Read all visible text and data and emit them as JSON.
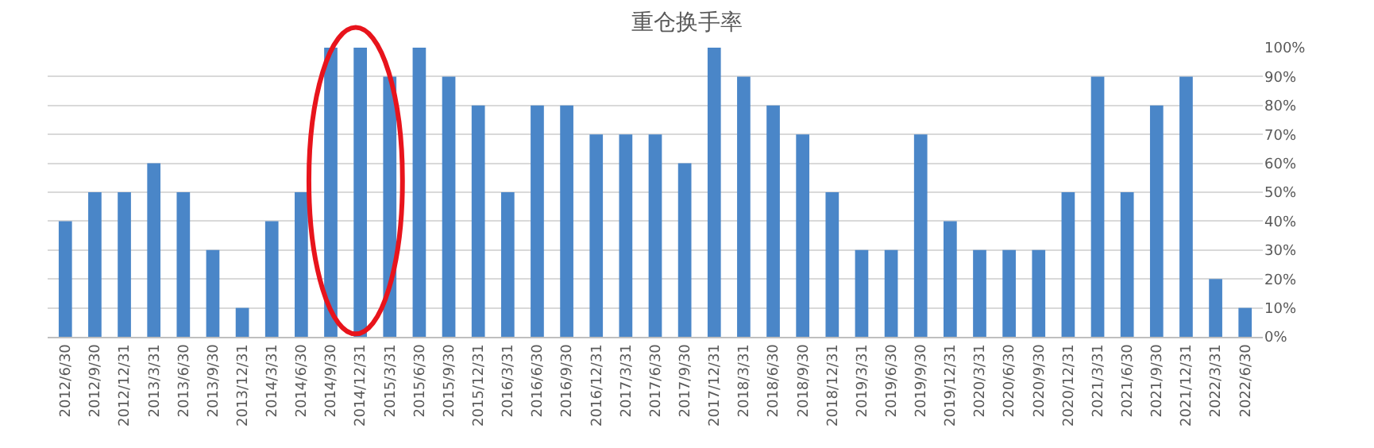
{
  "chart_data": {
    "type": "bar",
    "title": "重仓换手率",
    "categories": [
      "2012/6/30",
      "2012/9/30",
      "2012/12/31",
      "2013/3/31",
      "2013/6/30",
      "2013/9/30",
      "2013/12/31",
      "2014/3/31",
      "2014/6/30",
      "2014/9/30",
      "2014/12/31",
      "2015/3/31",
      "2015/6/30",
      "2015/9/30",
      "2015/12/31",
      "2016/3/31",
      "2016/6/30",
      "2016/9/30",
      "2016/12/31",
      "2017/3/31",
      "2017/6/30",
      "2017/9/30",
      "2017/12/31",
      "2018/3/31",
      "2018/6/30",
      "2018/9/30",
      "2018/12/31",
      "2019/3/31",
      "2019/6/30",
      "2019/9/30",
      "2019/12/31",
      "2020/3/31",
      "2020/6/30",
      "2020/9/30",
      "2020/12/31",
      "2021/3/31",
      "2021/6/30",
      "2021/9/30",
      "2021/12/31",
      "2022/3/31",
      "2022/6/30"
    ],
    "values": [
      40,
      50,
      50,
      60,
      50,
      30,
      10,
      40,
      50,
      100,
      100,
      90,
      100,
      90,
      80,
      50,
      80,
      80,
      70,
      70,
      70,
      60,
      100,
      90,
      80,
      70,
      50,
      30,
      30,
      70,
      40,
      30,
      30,
      30,
      50,
      90,
      50,
      80,
      90,
      20,
      10
    ],
    "color": "#4a86c8",
    "ylim": [
      0,
      100
    ],
    "yticks": [
      {
        "value": 0,
        "label": "0%"
      },
      {
        "value": 10,
        "label": "10%"
      },
      {
        "value": 20,
        "label": "20%"
      },
      {
        "value": 30,
        "label": "30%"
      },
      {
        "value": 40,
        "label": "40%"
      },
      {
        "value": 50,
        "label": "50%"
      },
      {
        "value": 60,
        "label": "60%"
      },
      {
        "value": 70,
        "label": "70%"
      },
      {
        "value": 80,
        "label": "80%"
      },
      {
        "value": 90,
        "label": "90%"
      },
      {
        "value": 100,
        "label": "100%"
      }
    ],
    "grid": "y"
  }
}
